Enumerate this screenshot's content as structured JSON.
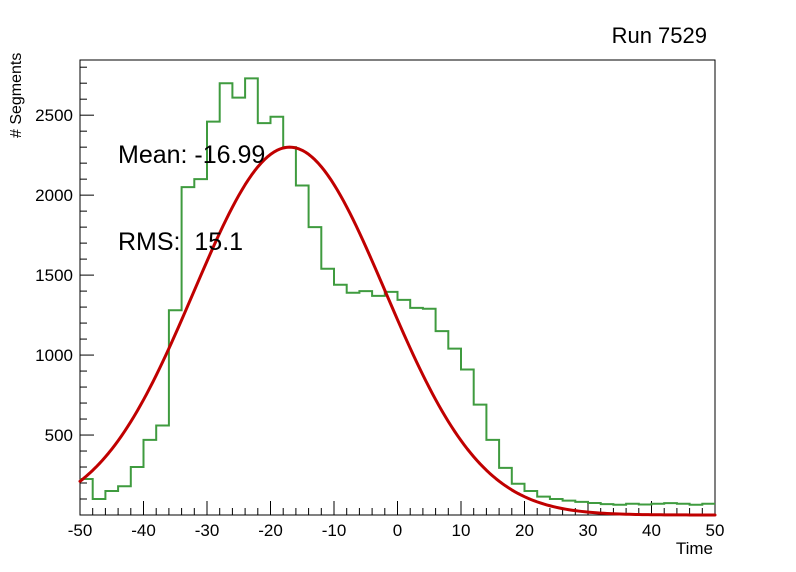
{
  "texts": {
    "title": "Run 7529",
    "stats_lines": [
      "Mean: -16.99",
      "RMS:  15.1"
    ],
    "xlabel": "Time",
    "ylabel": "# Segments"
  },
  "colors": {
    "histogram": "#3f9b3f",
    "fit": "#c00000",
    "axis": "#000000",
    "text": "#000000",
    "background": "#ffffff"
  },
  "chart_data": {
    "type": "bar",
    "subtype": "step-histogram-with-gaussian-fit",
    "title": "Run 7529",
    "xlabel": "Time",
    "ylabel": "# Segments",
    "xlim": [
      -50,
      50
    ],
    "ylim": [
      0,
      2845
    ],
    "grid": false,
    "legend": "none",
    "x_axis": {
      "major_tick_values": [
        -50,
        -40,
        -30,
        -20,
        -10,
        0,
        10,
        20,
        30,
        40,
        50
      ],
      "major_tick_labels": [
        "-50",
        "-40",
        "-30",
        "-20",
        "-10",
        "0",
        "10",
        "20",
        "30",
        "40",
        "50"
      ],
      "minor_tick_step": 2
    },
    "y_axis": {
      "major_tick_values": [
        500,
        1000,
        1500,
        2000,
        2500
      ],
      "major_tick_labels": [
        "500",
        "1000",
        "1500",
        "2000",
        "2500"
      ],
      "minor_tick_step": 100
    },
    "series": [
      {
        "name": "segments-histogram",
        "kind": "step-histogram",
        "color": "#3f9b3f",
        "bin_start": -50,
        "bin_width": 2,
        "values": [
          225,
          100,
          150,
          180,
          300,
          470,
          560,
          1280,
          2050,
          2100,
          2460,
          2700,
          2610,
          2730,
          2450,
          2490,
          2300,
          2060,
          1800,
          1540,
          1440,
          1390,
          1400,
          1370,
          1395,
          1345,
          1295,
          1290,
          1150,
          1040,
          910,
          690,
          470,
          295,
          195,
          150,
          115,
          100,
          90,
          82,
          75,
          68,
          64,
          70,
          66,
          70,
          74,
          70,
          64,
          70
        ]
      },
      {
        "name": "gaussian-fit",
        "kind": "function-gaussian",
        "color": "#c00000",
        "amplitude": 2300,
        "mean": -16.99,
        "sigma": 15.1
      }
    ],
    "stats": {
      "mean": -16.99,
      "rms": 15.1
    }
  }
}
